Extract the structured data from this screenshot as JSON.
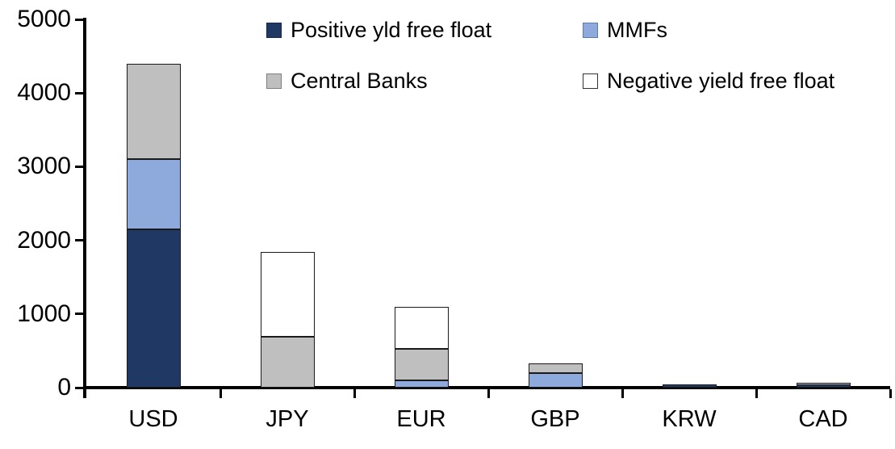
{
  "chart_data": {
    "type": "bar",
    "stacked": true,
    "title": "",
    "categories": [
      "USD",
      "JPY",
      "EUR",
      "GBP",
      "KRW",
      "CAD"
    ],
    "series": [
      {
        "name": "Positive yld free float",
        "color": "#1F3864",
        "border": "#16294A",
        "values": [
          2150,
          0,
          0,
          0,
          45,
          40
        ]
      },
      {
        "name": "MMFs",
        "color": "#8EA9DB",
        "border": "#5B7BB5",
        "values": [
          950,
          0,
          100,
          200,
          0,
          0
        ]
      },
      {
        "name": "Central Banks",
        "color": "#BFBFBF",
        "border": "#7F7F7F",
        "values": [
          1300,
          690,
          430,
          125,
          0,
          25
        ]
      },
      {
        "name": "Negative yield free float",
        "color": "#FFFFFF",
        "border": "#333333",
        "values": [
          0,
          1150,
          570,
          0,
          0,
          0
        ]
      }
    ],
    "totals": [
      4400,
      1840,
      1100,
      325,
      45,
      65
    ],
    "xlabel": "",
    "ylabel": "",
    "ylim": [
      0,
      5000
    ],
    "y_ticks": [
      0,
      1000,
      2000,
      3000,
      4000,
      5000
    ],
    "grid": false,
    "legend_position": "top",
    "legend_columns": 2,
    "axis_color": "#000000"
  }
}
